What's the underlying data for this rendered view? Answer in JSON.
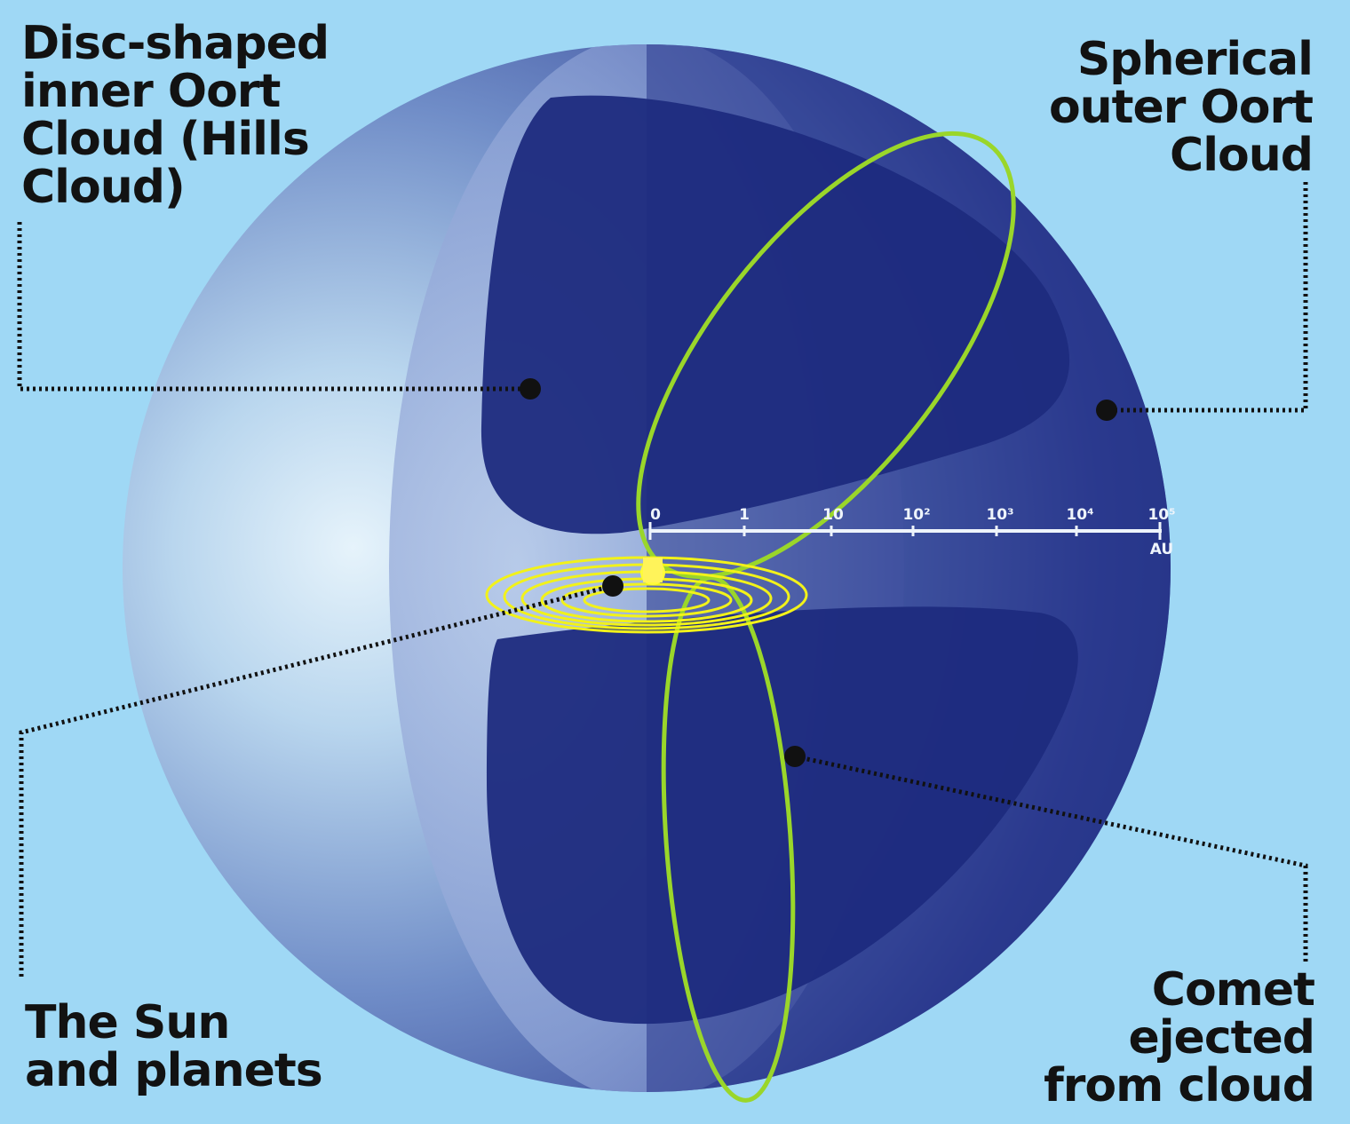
{
  "labels": {
    "inner_cloud": [
      "Disc-shaped",
      "inner Oort",
      "Cloud (Hills",
      "Cloud)"
    ],
    "outer_cloud": [
      "Spherical",
      "outer Oort",
      "Cloud"
    ],
    "sun_planets": [
      "The Sun",
      "and planets"
    ],
    "comet": [
      "Comet",
      "ejected",
      "from cloud"
    ]
  },
  "scale": {
    "ticks": [
      "0",
      "1",
      "10",
      "10²",
      "10³",
      "10⁴",
      "10⁵"
    ],
    "unit": "AU"
  },
  "colors": {
    "background": "#9fd8f5",
    "sphere_dark": "#1a2a78",
    "sphere_light": "#e6f3fb",
    "orbit_green": "#9ad62a",
    "planet_orbits": "#f2f21a",
    "callout": "#111111"
  }
}
